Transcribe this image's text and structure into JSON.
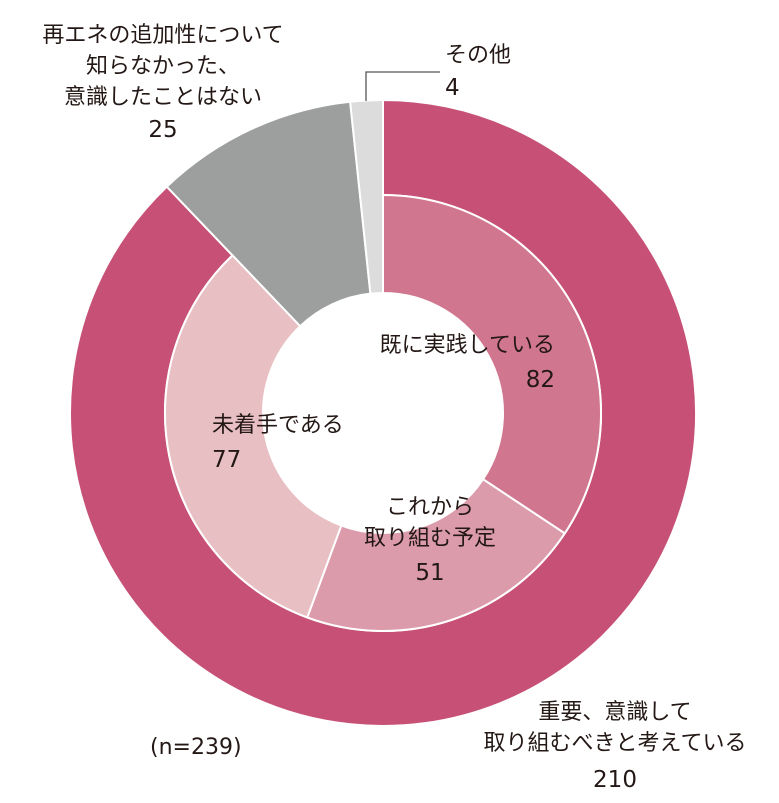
{
  "chart_data": {
    "type": "pie",
    "subtype": "nested-donut",
    "note": "(n=239)",
    "outer": [
      {
        "label_lines": [
          "重要、意識して",
          "取り組むべきと考えている"
        ],
        "value": 210,
        "color": "#c75176"
      },
      {
        "label_lines": [
          "再エネの追加性について",
          "知らなかった、",
          "意識したことはない"
        ],
        "value": 25,
        "color": "#9d9e9e"
      },
      {
        "label_lines": [
          "その他"
        ],
        "value": 4,
        "color": "#dcdcdc"
      }
    ],
    "inner": [
      {
        "label_lines": [
          "既に実践している"
        ],
        "value": 82,
        "color": "#d1768f"
      },
      {
        "label_lines": [
          "これから",
          "取り組む予定"
        ],
        "value": 51,
        "color": "#dc9bab"
      },
      {
        "label_lines": [
          "未着手である"
        ],
        "value": 77,
        "color": "#e8bfc2"
      }
    ]
  }
}
